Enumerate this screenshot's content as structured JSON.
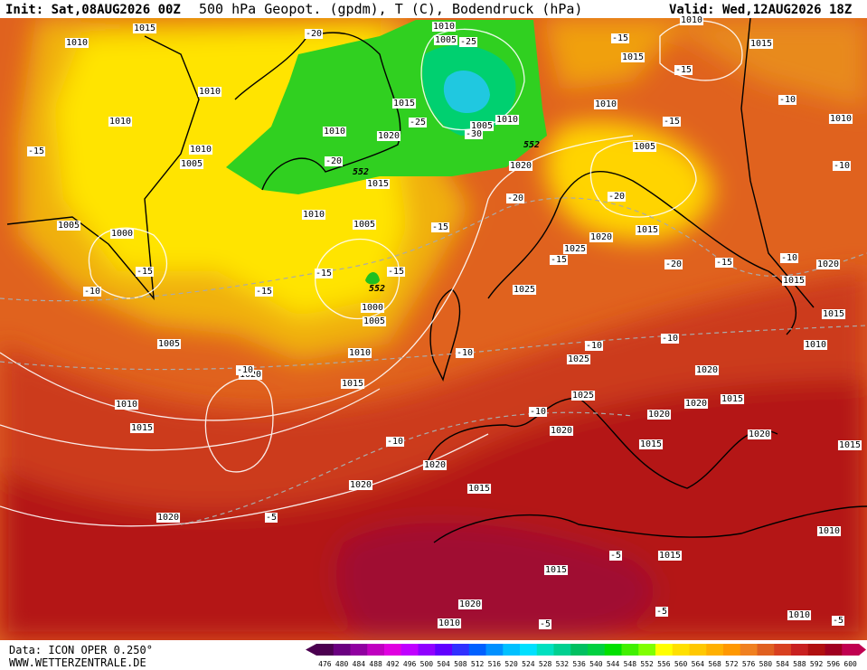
{
  "header": {
    "init": "Init: Sat,08AUG2026 00Z",
    "title": "500 hPa Geopot. (gpdm), T (C), Bodendruck (hPa)",
    "valid": "Valid: Wed,12AUG2026 18Z"
  },
  "footer": {
    "source": "Data: ICON OPER 0.250°",
    "site": "WWW.WETTERZENTRALE.DE"
  },
  "map": {
    "pressure_labels": [
      1015,
      1010,
      1010,
      1010,
      1010,
      1005,
      1005,
      1000,
      1005,
      1010,
      1015,
      1020,
      1020,
      1015,
      1010,
      1005,
      1000,
      1005,
      1010,
      1015,
      1020,
      1010,
      1015,
      1005,
      1010,
      1005,
      1010,
      1020,
      1025,
      1020,
      1015,
      1005,
      1010,
      1015,
      1015,
      1010,
      1025,
      1025,
      1025,
      1020,
      1020,
      1015,
      1020,
      1015,
      1020,
      1020,
      1020,
      1015,
      1020,
      1015,
      1015,
      1020,
      1010,
      1010,
      1020,
      1015,
      1015,
      1010,
      1010,
      1015,
      1010
    ],
    "temperature_labels": [
      -20,
      -15,
      -15,
      -10,
      -15,
      -15,
      -15,
      -15,
      -20,
      -25,
      -30,
      -25,
      -15,
      -15,
      -15,
      -10,
      -10,
      -20,
      -20,
      -15,
      -20,
      -15,
      -10,
      -10,
      -10,
      -10,
      -10,
      -10,
      -10,
      -5,
      -5,
      -5,
      -5,
      -5
    ],
    "height_labels": [
      552,
      552,
      552
    ]
  },
  "legend": {
    "values": [
      476,
      480,
      484,
      488,
      492,
      496,
      500,
      504,
      508,
      512,
      516,
      520,
      524,
      528,
      532,
      536,
      540,
      544,
      548,
      552,
      556,
      560,
      564,
      568,
      572,
      576,
      580,
      584,
      588,
      592,
      596,
      600
    ],
    "colors": [
      "#4b0050",
      "#6a0080",
      "#9000a0",
      "#c000c0",
      "#e000e0",
      "#c000ff",
      "#9000ff",
      "#6000ff",
      "#3030ff",
      "#0060ff",
      "#0090ff",
      "#00c0ff",
      "#00e0ff",
      "#00e0c0",
      "#00d090",
      "#00c060",
      "#00d040",
      "#00e000",
      "#40f000",
      "#80ff00",
      "#ffff00",
      "#ffe000",
      "#ffc800",
      "#ffb000",
      "#ff9800",
      "#f08020",
      "#e06020",
      "#d84020",
      "#c82020",
      "#b01010",
      "#a00020",
      "#c00050"
    ]
  }
}
